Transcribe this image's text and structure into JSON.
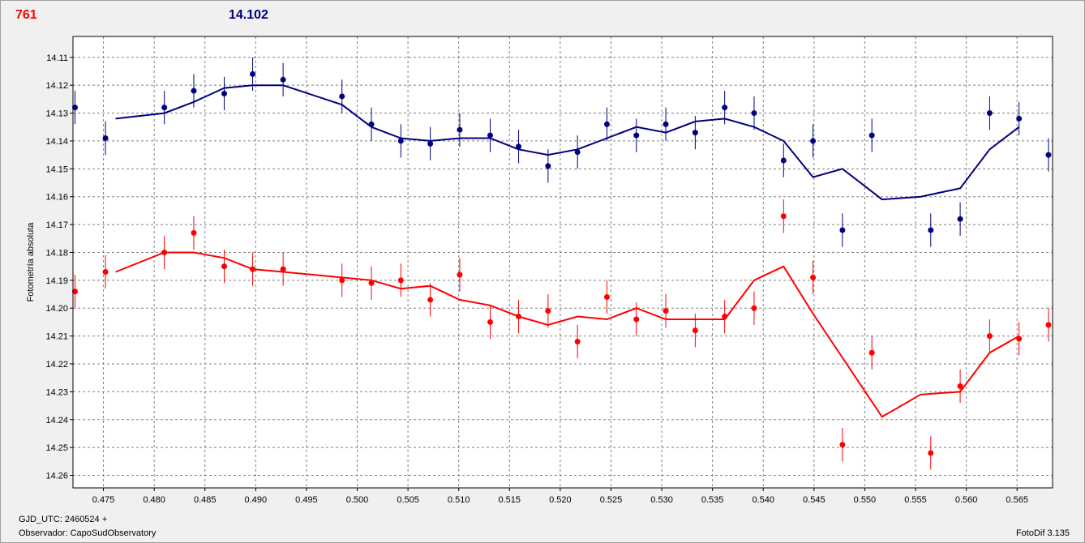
{
  "header": {
    "left_value": "761",
    "right_value": "14.102"
  },
  "footer": {
    "gjd": "GJD_UTC: 2460524 +",
    "observer": "Observador: CapoSudObservatory",
    "app": "FotoDif 3.135"
  },
  "colors": {
    "red": "#ff0000",
    "blue": "#000080",
    "grid": "#808080",
    "plot_bg": "#ffffff"
  },
  "chart_data": {
    "type": "scatter",
    "ylabel": "Fotometría absoluta",
    "xlabel": "",
    "xlim": [
      0.472,
      0.5685
    ],
    "ylim": [
      14.2645,
      14.1025
    ],
    "y_inverted": true,
    "grid": true,
    "x_ticks": [
      "0.475",
      "0.480",
      "0.485",
      "0.490",
      "0.495",
      "0.500",
      "0.505",
      "0.510",
      "0.515",
      "0.520",
      "0.525",
      "0.530",
      "0.535",
      "0.540",
      "0.545",
      "0.550",
      "0.555",
      "0.560",
      "0.565"
    ],
    "y_ticks": [
      "14.11",
      "14.12",
      "14.13",
      "14.14",
      "14.15",
      "14.16",
      "14.17",
      "14.18",
      "14.19",
      "14.20",
      "14.21",
      "14.22",
      "14.23",
      "14.24",
      "14.25",
      "14.26"
    ],
    "error_bar": 0.006,
    "series": [
      {
        "color": "#000080",
        "points": [
          [
            0.4722,
            14.128
          ],
          [
            0.4752,
            14.139
          ],
          [
            0.481,
            14.128
          ],
          [
            0.4839,
            14.122
          ],
          [
            0.4869,
            14.123
          ],
          [
            0.4897,
            14.116
          ],
          [
            0.4927,
            14.118
          ],
          [
            0.4985,
            14.124
          ],
          [
            0.5014,
            14.134
          ],
          [
            0.5043,
            14.14
          ],
          [
            0.5072,
            14.141
          ],
          [
            0.5101,
            14.136
          ],
          [
            0.5131,
            14.138
          ],
          [
            0.5159,
            14.142
          ],
          [
            0.5188,
            14.149
          ],
          [
            0.5217,
            14.144
          ],
          [
            0.5246,
            14.134
          ],
          [
            0.5275,
            14.138
          ],
          [
            0.5304,
            14.134
          ],
          [
            0.5333,
            14.137
          ],
          [
            0.5362,
            14.128
          ],
          [
            0.5391,
            14.13
          ],
          [
            0.542,
            14.147
          ],
          [
            0.5449,
            14.14
          ],
          [
            0.5478,
            14.172
          ],
          [
            0.5507,
            14.138
          ],
          [
            0.5565,
            14.172
          ],
          [
            0.5594,
            14.168
          ],
          [
            0.5623,
            14.13
          ],
          [
            0.5652,
            14.132
          ],
          [
            0.5681,
            14.145
          ]
        ],
        "fit": [
          [
            0.4762,
            14.132
          ],
          [
            0.481,
            14.13
          ],
          [
            0.4839,
            14.126
          ],
          [
            0.4869,
            14.121
          ],
          [
            0.4897,
            14.12
          ],
          [
            0.4927,
            14.12
          ],
          [
            0.4985,
            14.127
          ],
          [
            0.5014,
            14.135
          ],
          [
            0.5043,
            14.139
          ],
          [
            0.5072,
            14.14
          ],
          [
            0.5101,
            14.139
          ],
          [
            0.5131,
            14.139
          ],
          [
            0.5159,
            14.143
          ],
          [
            0.5188,
            14.145
          ],
          [
            0.5217,
            14.143
          ],
          [
            0.5246,
            14.139
          ],
          [
            0.5275,
            14.135
          ],
          [
            0.5304,
            14.137
          ],
          [
            0.5333,
            14.133
          ],
          [
            0.5362,
            14.132
          ],
          [
            0.5391,
            14.135
          ],
          [
            0.542,
            14.14
          ],
          [
            0.5449,
            14.153
          ],
          [
            0.5478,
            14.15
          ],
          [
            0.5517,
            14.161
          ],
          [
            0.5555,
            14.16
          ],
          [
            0.5594,
            14.157
          ],
          [
            0.5623,
            14.143
          ],
          [
            0.5652,
            14.135
          ]
        ]
      },
      {
        "color": "#ff0000",
        "points": [
          [
            0.4722,
            14.194
          ],
          [
            0.4752,
            14.187
          ],
          [
            0.481,
            14.18
          ],
          [
            0.4839,
            14.173
          ],
          [
            0.4869,
            14.185
          ],
          [
            0.4897,
            14.186
          ],
          [
            0.4927,
            14.186
          ],
          [
            0.4985,
            14.19
          ],
          [
            0.5014,
            14.191
          ],
          [
            0.5043,
            14.19
          ],
          [
            0.5072,
            14.197
          ],
          [
            0.5101,
            14.188
          ],
          [
            0.5131,
            14.205
          ],
          [
            0.5159,
            14.203
          ],
          [
            0.5188,
            14.201
          ],
          [
            0.5217,
            14.212
          ],
          [
            0.5246,
            14.196
          ],
          [
            0.5275,
            14.204
          ],
          [
            0.5304,
            14.201
          ],
          [
            0.5333,
            14.208
          ],
          [
            0.5362,
            14.203
          ],
          [
            0.5391,
            14.2
          ],
          [
            0.542,
            14.167
          ],
          [
            0.5449,
            14.189
          ],
          [
            0.5478,
            14.249
          ],
          [
            0.5507,
            14.216
          ],
          [
            0.5565,
            14.252
          ],
          [
            0.5594,
            14.228
          ],
          [
            0.5623,
            14.21
          ],
          [
            0.5652,
            14.211
          ],
          [
            0.5681,
            14.206
          ]
        ],
        "fit": [
          [
            0.4762,
            14.187
          ],
          [
            0.481,
            14.18
          ],
          [
            0.4839,
            14.18
          ],
          [
            0.4869,
            14.182
          ],
          [
            0.4897,
            14.186
          ],
          [
            0.4927,
            14.187
          ],
          [
            0.4985,
            14.189
          ],
          [
            0.5014,
            14.19
          ],
          [
            0.5043,
            14.193
          ],
          [
            0.5072,
            14.192
          ],
          [
            0.5101,
            14.197
          ],
          [
            0.5131,
            14.199
          ],
          [
            0.5159,
            14.203
          ],
          [
            0.5188,
            14.206
          ],
          [
            0.5217,
            14.203
          ],
          [
            0.5246,
            14.204
          ],
          [
            0.5275,
            14.2
          ],
          [
            0.5304,
            14.204
          ],
          [
            0.5333,
            14.204
          ],
          [
            0.5362,
            14.204
          ],
          [
            0.5391,
            14.19
          ],
          [
            0.542,
            14.185
          ],
          [
            0.5449,
            14.202
          ],
          [
            0.5517,
            14.239
          ],
          [
            0.5555,
            14.231
          ],
          [
            0.5594,
            14.23
          ],
          [
            0.5623,
            14.216
          ],
          [
            0.5652,
            14.21
          ]
        ]
      }
    ]
  }
}
